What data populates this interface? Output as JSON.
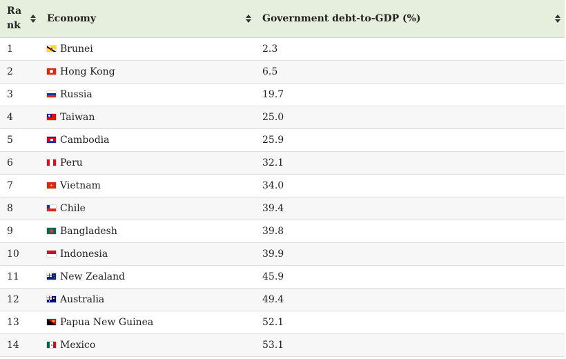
{
  "header": {
    "rank_label": "Rank",
    "economy_label": "Economy",
    "debt_label": "Government debt-to-GDP (%)"
  },
  "rows": [
    {
      "rank": "1",
      "economy": "Brunei",
      "debt": "2.3",
      "flag": "flag-brunei"
    },
    {
      "rank": "2",
      "economy": "Hong Kong",
      "debt": "6.5",
      "flag": "flag-hong-kong"
    },
    {
      "rank": "3",
      "economy": "Russia",
      "debt": "19.7",
      "flag": "flag-russia"
    },
    {
      "rank": "4",
      "economy": "Taiwan",
      "debt": "25.0",
      "flag": "flag-taiwan"
    },
    {
      "rank": "5",
      "economy": "Cambodia",
      "debt": "25.9",
      "flag": "flag-cambodia"
    },
    {
      "rank": "6",
      "economy": "Peru",
      "debt": "32.1",
      "flag": "flag-peru"
    },
    {
      "rank": "7",
      "economy": "Vietnam",
      "debt": "34.0",
      "flag": "flag-vietnam"
    },
    {
      "rank": "8",
      "economy": "Chile",
      "debt": "39.4",
      "flag": "flag-chile"
    },
    {
      "rank": "9",
      "economy": "Bangladesh",
      "debt": "39.8",
      "flag": "flag-bangladesh"
    },
    {
      "rank": "10",
      "economy": "Indonesia",
      "debt": "39.9",
      "flag": "flag-indonesia"
    },
    {
      "rank": "11",
      "economy": "New Zealand",
      "debt": "45.9",
      "flag": "flag-new-zealand"
    },
    {
      "rank": "12",
      "economy": "Australia",
      "debt": "49.4",
      "flag": "flag-australia"
    },
    {
      "rank": "13",
      "economy": "Papua New Guinea",
      "debt": "52.1",
      "flag": "flag-papua-new-guinea"
    },
    {
      "rank": "14",
      "economy": "Mexico",
      "debt": "53.1",
      "flag": "flag-mexico"
    }
  ],
  "colors": {
    "header_bg": "#e6eedd",
    "row_alt_bg": "#f7f7f7",
    "border": "#dcdcdc"
  }
}
